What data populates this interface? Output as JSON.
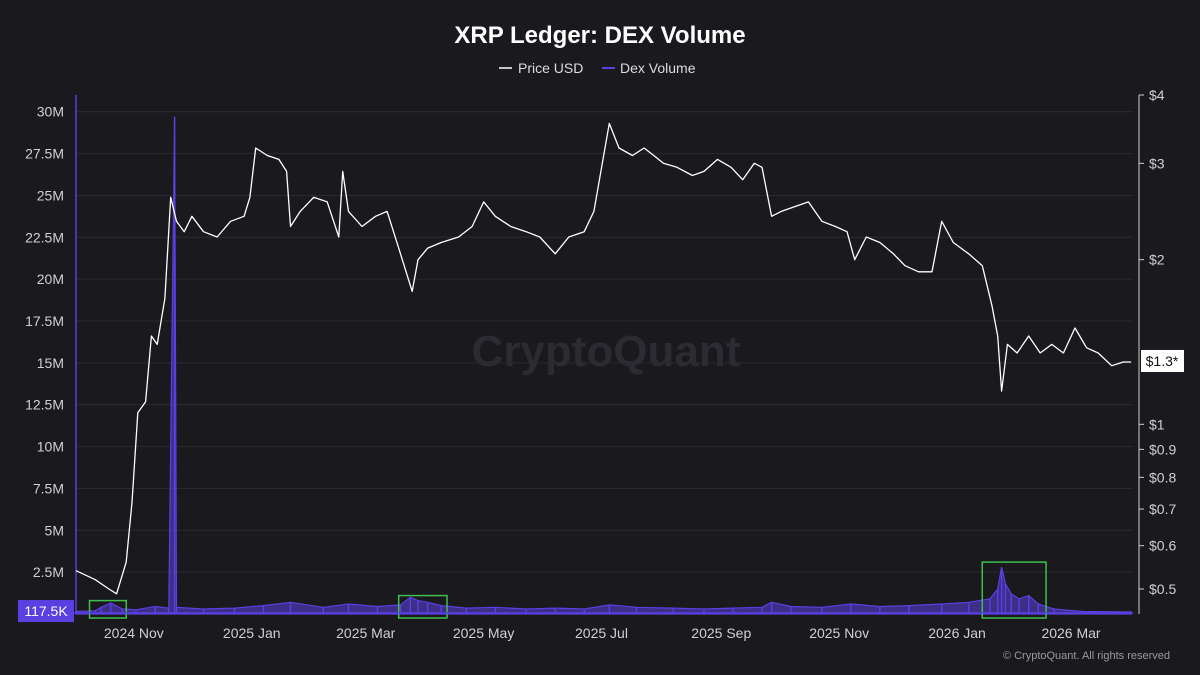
{
  "chart_data": {
    "type": "line",
    "title": "XRP Ledger: DEX Volume",
    "watermark": "CryptoQuant",
    "copyright": "© CryptoQuant. All rights reserved",
    "legend": {
      "placement": "top-center",
      "entries": [
        {
          "name": "Price USD",
          "color": "#ffffff"
        },
        {
          "name": "Dex Volume",
          "color": "#5b3fe0"
        }
      ]
    },
    "x_ticks": [
      "2024 Nov",
      "2025 Jan",
      "2025 Mar",
      "2025 May",
      "2025 Jul",
      "2025 Sep",
      "2025 Nov",
      "2026 Jan",
      "2026 Mar"
    ],
    "x_range": [
      "2024-10-15",
      "2026-04-15"
    ],
    "y_left": {
      "label": "",
      "range": [
        0,
        31000000
      ],
      "ticks": [
        {
          "v": 2500000,
          "t": "2.5M"
        },
        {
          "v": 5000000,
          "t": "5M"
        },
        {
          "v": 7500000,
          "t": "7.5M"
        },
        {
          "v": 10000000,
          "t": "10M"
        },
        {
          "v": 12500000,
          "t": "12.5M"
        },
        {
          "v": 15000000,
          "t": "15M"
        },
        {
          "v": 17500000,
          "t": "17.5M"
        },
        {
          "v": 20000000,
          "t": "20M"
        },
        {
          "v": 22500000,
          "t": "22.5M"
        },
        {
          "v": 25000000,
          "t": "25M"
        },
        {
          "v": 27500000,
          "t": "27.5M"
        },
        {
          "v": 30000000,
          "t": "30M"
        }
      ],
      "current_value": 117500,
      "current_label": "117.5K"
    },
    "y_right": {
      "label": "",
      "scale": "log",
      "range": [
        0.45,
        4
      ],
      "ticks": [
        {
          "v": 0.5,
          "t": "$0.5"
        },
        {
          "v": 0.6,
          "t": "$0.6"
        },
        {
          "v": 0.7,
          "t": "$0.7"
        },
        {
          "v": 0.8,
          "t": "$0.8"
        },
        {
          "v": 0.9,
          "t": "$0.9"
        },
        {
          "v": 1,
          "t": "$1"
        },
        {
          "v": 2,
          "t": "$2"
        },
        {
          "v": 3,
          "t": "$3"
        },
        {
          "v": 4,
          "t": "$4"
        }
      ],
      "current_value": 1.3,
      "current_label": "$1.3*"
    },
    "grid": true,
    "series": [
      {
        "name": "Price USD",
        "color": "#ffffff",
        "axis": "right",
        "points": [
          [
            "2024-10-15",
            0.54
          ],
          [
            "2024-10-25",
            0.52
          ],
          [
            "2024-11-01",
            0.5
          ],
          [
            "2024-11-05",
            0.49
          ],
          [
            "2024-11-10",
            0.56
          ],
          [
            "2024-11-13",
            0.72
          ],
          [
            "2024-11-16",
            1.05
          ],
          [
            "2024-11-20",
            1.1
          ],
          [
            "2024-11-23",
            1.45
          ],
          [
            "2024-11-26",
            1.4
          ],
          [
            "2024-11-30",
            1.7
          ],
          [
            "2024-12-03",
            2.6
          ],
          [
            "2024-12-06",
            2.35
          ],
          [
            "2024-12-10",
            2.25
          ],
          [
            "2024-12-14",
            2.4
          ],
          [
            "2024-12-20",
            2.25
          ],
          [
            "2024-12-27",
            2.2
          ],
          [
            "2025-01-03",
            2.35
          ],
          [
            "2025-01-10",
            2.4
          ],
          [
            "2025-01-13",
            2.6
          ],
          [
            "2025-01-16",
            3.2
          ],
          [
            "2025-01-22",
            3.1
          ],
          [
            "2025-01-28",
            3.05
          ],
          [
            "2025-02-01",
            2.9
          ],
          [
            "2025-02-03",
            2.3
          ],
          [
            "2025-02-08",
            2.45
          ],
          [
            "2025-02-15",
            2.6
          ],
          [
            "2025-02-22",
            2.55
          ],
          [
            "2025-02-28",
            2.2
          ],
          [
            "2025-03-02",
            2.9
          ],
          [
            "2025-03-05",
            2.45
          ],
          [
            "2025-03-12",
            2.3
          ],
          [
            "2025-03-19",
            2.4
          ],
          [
            "2025-03-25",
            2.45
          ],
          [
            "2025-03-31",
            2.1
          ],
          [
            "2025-04-07",
            1.75
          ],
          [
            "2025-04-10",
            2.0
          ],
          [
            "2025-04-15",
            2.1
          ],
          [
            "2025-04-22",
            2.15
          ],
          [
            "2025-05-01",
            2.2
          ],
          [
            "2025-05-08",
            2.3
          ],
          [
            "2025-05-14",
            2.55
          ],
          [
            "2025-05-20",
            2.4
          ],
          [
            "2025-05-28",
            2.3
          ],
          [
            "2025-06-05",
            2.25
          ],
          [
            "2025-06-12",
            2.2
          ],
          [
            "2025-06-20",
            2.05
          ],
          [
            "2025-06-27",
            2.2
          ],
          [
            "2025-07-05",
            2.25
          ],
          [
            "2025-07-10",
            2.45
          ],
          [
            "2025-07-14",
            2.95
          ],
          [
            "2025-07-18",
            3.55
          ],
          [
            "2025-07-23",
            3.2
          ],
          [
            "2025-07-30",
            3.1
          ],
          [
            "2025-08-05",
            3.2
          ],
          [
            "2025-08-10",
            3.1
          ],
          [
            "2025-08-15",
            3.0
          ],
          [
            "2025-08-22",
            2.95
          ],
          [
            "2025-08-30",
            2.85
          ],
          [
            "2025-09-05",
            2.9
          ],
          [
            "2025-09-12",
            3.05
          ],
          [
            "2025-09-19",
            2.95
          ],
          [
            "2025-09-25",
            2.8
          ],
          [
            "2025-10-01",
            3.0
          ],
          [
            "2025-10-05",
            2.95
          ],
          [
            "2025-10-10",
            2.4
          ],
          [
            "2025-10-15",
            2.45
          ],
          [
            "2025-10-22",
            2.5
          ],
          [
            "2025-10-29",
            2.55
          ],
          [
            "2025-11-05",
            2.35
          ],
          [
            "2025-11-12",
            2.3
          ],
          [
            "2025-11-18",
            2.25
          ],
          [
            "2025-11-22",
            2.0
          ],
          [
            "2025-11-28",
            2.2
          ],
          [
            "2025-12-05",
            2.15
          ],
          [
            "2025-12-12",
            2.05
          ],
          [
            "2025-12-18",
            1.95
          ],
          [
            "2025-12-25",
            1.9
          ],
          [
            "2026-01-01",
            1.9
          ],
          [
            "2026-01-06",
            2.35
          ],
          [
            "2026-01-12",
            2.15
          ],
          [
            "2026-01-20",
            2.05
          ],
          [
            "2026-01-27",
            1.95
          ],
          [
            "2026-02-01",
            1.65
          ],
          [
            "2026-02-04",
            1.45
          ],
          [
            "2026-02-06",
            1.15
          ],
          [
            "2026-02-09",
            1.4
          ],
          [
            "2026-02-14",
            1.35
          ],
          [
            "2026-02-20",
            1.45
          ],
          [
            "2026-02-26",
            1.35
          ],
          [
            "2026-03-04",
            1.4
          ],
          [
            "2026-03-10",
            1.35
          ],
          [
            "2026-03-16",
            1.5
          ],
          [
            "2026-03-22",
            1.38
          ],
          [
            "2026-03-28",
            1.35
          ],
          [
            "2026-04-04",
            1.28
          ],
          [
            "2026-04-10",
            1.3
          ],
          [
            "2026-04-14",
            1.3
          ]
        ]
      },
      {
        "name": "Dex Volume",
        "color": "#5b3fe0",
        "axis": "left",
        "points": [
          [
            "2024-10-15",
            150000
          ],
          [
            "2024-10-25",
            200000
          ],
          [
            "2024-10-28",
            400000
          ],
          [
            "2024-11-02",
            650000
          ],
          [
            "2024-11-08",
            300000
          ],
          [
            "2024-11-15",
            250000
          ],
          [
            "2024-11-25",
            450000
          ],
          [
            "2024-12-02",
            350000
          ],
          [
            "2024-12-05",
            29700000
          ],
          [
            "2024-12-06",
            400000
          ],
          [
            "2024-12-20",
            300000
          ],
          [
            "2025-01-05",
            350000
          ],
          [
            "2025-01-20",
            500000
          ],
          [
            "2025-02-03",
            700000
          ],
          [
            "2025-02-20",
            400000
          ],
          [
            "2025-03-05",
            600000
          ],
          [
            "2025-03-20",
            450000
          ],
          [
            "2025-04-01",
            550000
          ],
          [
            "2025-04-06",
            1000000
          ],
          [
            "2025-04-10",
            800000
          ],
          [
            "2025-04-15",
            700000
          ],
          [
            "2025-04-22",
            500000
          ],
          [
            "2025-05-05",
            350000
          ],
          [
            "2025-05-20",
            400000
          ],
          [
            "2025-06-05",
            300000
          ],
          [
            "2025-06-20",
            350000
          ],
          [
            "2025-07-05",
            300000
          ],
          [
            "2025-07-18",
            550000
          ],
          [
            "2025-08-01",
            400000
          ],
          [
            "2025-08-20",
            350000
          ],
          [
            "2025-09-05",
            300000
          ],
          [
            "2025-09-20",
            350000
          ],
          [
            "2025-10-05",
            400000
          ],
          [
            "2025-10-10",
            700000
          ],
          [
            "2025-10-20",
            450000
          ],
          [
            "2025-11-05",
            400000
          ],
          [
            "2025-11-20",
            600000
          ],
          [
            "2025-12-05",
            450000
          ],
          [
            "2025-12-20",
            500000
          ],
          [
            "2026-01-06",
            600000
          ],
          [
            "2026-01-20",
            700000
          ],
          [
            "2026-01-31",
            900000
          ],
          [
            "2026-02-04",
            1500000
          ],
          [
            "2026-02-06",
            2800000
          ],
          [
            "2026-02-08",
            1800000
          ],
          [
            "2026-02-11",
            1200000
          ],
          [
            "2026-02-15",
            900000
          ],
          [
            "2026-02-20",
            1100000
          ],
          [
            "2026-02-25",
            600000
          ],
          [
            "2026-03-05",
            300000
          ],
          [
            "2026-03-20",
            150000
          ],
          [
            "2026-04-14",
            117500
          ]
        ]
      }
    ],
    "annotations": [
      {
        "type": "box",
        "color": "#3fbf4f",
        "x": [
          "2024-10-22",
          "2024-11-10"
        ],
        "y_left": [
          0,
          800000
        ]
      },
      {
        "type": "box",
        "color": "#3fbf4f",
        "x": [
          "2025-03-31",
          "2025-04-25"
        ],
        "y_left": [
          0,
          1100000
        ]
      },
      {
        "type": "box",
        "color": "#3fbf4f",
        "x": [
          "2026-01-27",
          "2026-03-01"
        ],
        "y_left": [
          0,
          3100000
        ]
      }
    ]
  }
}
